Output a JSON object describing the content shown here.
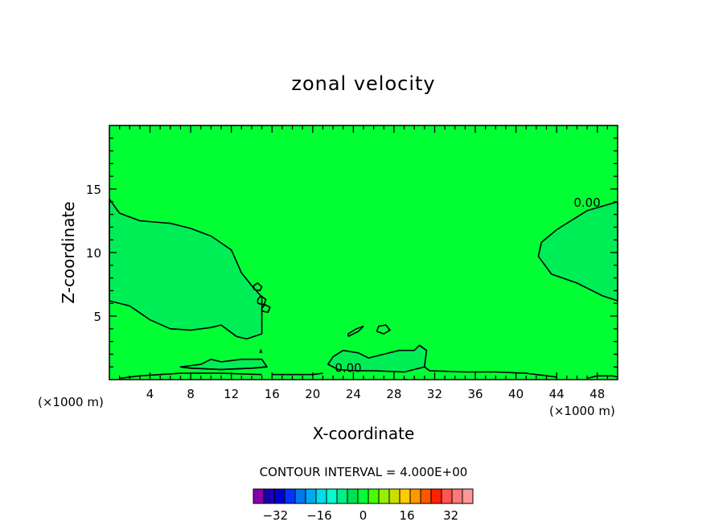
{
  "chart_data": {
    "type": "contour",
    "title": "zonal velocity",
    "xlabel": "X-coordinate",
    "ylabel": "Z-coordinate",
    "x_unit_left": "(×1000 m)",
    "x_unit_right": "(×1000 m)",
    "xlim": [
      0,
      50
    ],
    "ylim": [
      0,
      20
    ],
    "x_ticks": [
      4,
      8,
      12,
      16,
      20,
      24,
      28,
      32,
      36,
      40,
      44,
      48
    ],
    "y_ticks": [
      5,
      10,
      15
    ],
    "background_color": "#00ff33",
    "contour_levels_labeled": [
      "0.00",
      "0.00"
    ],
    "contour_interval_text": "CONTOUR INTERVAL = 4.000E+00",
    "colorbar": {
      "tick_labels": [
        "-32",
        "-16",
        "0",
        "16",
        "32"
      ],
      "tick_values": [
        -32,
        -16,
        0,
        16,
        32
      ],
      "range": [
        -40,
        40
      ],
      "colors": [
        "#8800aa",
        "#1a00aa",
        "#0000cc",
        "#0033ff",
        "#0077ee",
        "#00aaee",
        "#00ddee",
        "#00ffcc",
        "#00ee88",
        "#00e050",
        "#00ff33",
        "#44ff00",
        "#99ee00",
        "#ccdd00",
        "#ffcc00",
        "#ff9900",
        "#ff5500",
        "#ff2200",
        "#ff5555",
        "#ff7777",
        "#ff9999"
      ]
    },
    "regions": [
      {
        "name": "negative-upper-left",
        "value": -0.5,
        "color": "#00ee55",
        "points": [
          [
            0,
            14.2
          ],
          [
            1,
            13.1
          ],
          [
            3,
            12.5
          ],
          [
            6,
            12.3
          ],
          [
            8,
            11.9
          ],
          [
            10,
            11.3
          ],
          [
            12,
            10.2
          ],
          [
            13,
            8.4
          ],
          [
            14,
            7.4
          ],
          [
            15,
            6.5
          ],
          [
            15,
            3.6
          ],
          [
            13.5,
            3.2
          ],
          [
            12.5,
            3.4
          ],
          [
            11,
            4.3
          ],
          [
            10,
            4.1
          ],
          [
            8,
            3.9
          ],
          [
            6,
            4.0
          ],
          [
            4,
            4.7
          ],
          [
            2,
            5.8
          ],
          [
            0,
            6.2
          ]
        ]
      },
      {
        "name": "negative-right",
        "value": -0.5,
        "color": "#00ee55",
        "points": [
          [
            50,
            14.0
          ],
          [
            47,
            13.3
          ],
          [
            44,
            11.8
          ],
          [
            42.5,
            10.8
          ],
          [
            42.2,
            9.7
          ],
          [
            43.5,
            8.3
          ],
          [
            46,
            7.6
          ],
          [
            48.5,
            6.6
          ],
          [
            50,
            6.2
          ]
        ]
      },
      {
        "name": "negative-bottom-center",
        "value": -0.5,
        "color": "#00ee55",
        "points": [
          [
            22,
            1.8
          ],
          [
            23,
            2.3
          ],
          [
            24.5,
            2.1
          ],
          [
            25.5,
            1.7
          ],
          [
            27,
            2.0
          ],
          [
            28.5,
            2.3
          ],
          [
            30,
            2.3
          ],
          [
            30.5,
            2.7
          ],
          [
            31.2,
            2.3
          ],
          [
            31,
            1.0
          ],
          [
            29,
            0.6
          ],
          [
            26,
            0.7
          ],
          [
            24,
            0.7
          ],
          [
            22.5,
            0.8
          ],
          [
            21.5,
            1.2
          ]
        ]
      },
      {
        "name": "negative-bottom-left",
        "value": -0.5,
        "color": "#00ee55",
        "points": [
          [
            7,
            1.0
          ],
          [
            9,
            1.2
          ],
          [
            10,
            1.6
          ],
          [
            11,
            1.4
          ],
          [
            13,
            1.6
          ],
          [
            15,
            1.6
          ],
          [
            15.5,
            1.0
          ],
          [
            14,
            0.9
          ],
          [
            11,
            0.8
          ],
          [
            8,
            0.9
          ]
        ]
      }
    ],
    "contour_lines": [
      {
        "name": "contour-lower-left",
        "points": [
          [
            7,
            1.0
          ],
          [
            8,
            0.9
          ],
          [
            11,
            0.8
          ],
          [
            14,
            0.9
          ],
          [
            15.5,
            1.0
          ]
        ]
      },
      {
        "name": "contour-bottom-right",
        "points": [
          [
            31,
            1.0
          ],
          [
            31.5,
            0.7
          ],
          [
            35,
            0.6
          ],
          [
            38,
            0.6
          ],
          [
            41,
            0.5
          ],
          [
            44,
            0.2
          ]
        ]
      },
      {
        "name": "contour-bottom-right-2",
        "points": [
          [
            47,
            0.1
          ],
          [
            48,
            0.3
          ],
          [
            49.5,
            0.3
          ],
          [
            50,
            0.2
          ]
        ]
      },
      {
        "name": "contour-bottom-left",
        "points": [
          [
            1,
            0.1
          ],
          [
            3,
            0.3
          ],
          [
            7,
            0.5
          ],
          [
            11,
            0.5
          ],
          [
            15,
            0.4
          ]
        ]
      },
      {
        "name": "contour-bottom-middle",
        "points": [
          [
            16,
            0.4
          ],
          [
            18,
            0.4
          ],
          [
            20,
            0.4
          ],
          [
            21,
            0.5
          ]
        ]
      },
      {
        "name": "contour-islet-1",
        "points": [
          [
            14.2,
            7.1
          ],
          [
            14.8,
            7.0
          ],
          [
            15.0,
            7.3
          ],
          [
            14.6,
            7.6
          ],
          [
            14.2,
            7.4
          ],
          [
            14.2,
            7.1
          ]
        ]
      },
      {
        "name": "contour-islet-2",
        "points": [
          [
            14.6,
            6.0
          ],
          [
            15.2,
            5.9
          ],
          [
            15.4,
            6.3
          ],
          [
            14.9,
            6.6
          ],
          [
            14.6,
            6.3
          ],
          [
            14.6,
            6.0
          ]
        ]
      },
      {
        "name": "contour-islet-3",
        "points": [
          [
            15.0,
            5.4
          ],
          [
            15.6,
            5.3
          ],
          [
            15.8,
            5.7
          ],
          [
            15.3,
            5.9
          ],
          [
            15.0,
            5.6
          ],
          [
            15.0,
            5.4
          ]
        ]
      },
      {
        "name": "contour-islet-4",
        "points": [
          [
            23.5,
            3.4
          ],
          [
            24.5,
            3.8
          ],
          [
            25,
            4.2
          ],
          [
            24.3,
            4.0
          ],
          [
            23.5,
            3.6
          ],
          [
            23.5,
            3.4
          ]
        ]
      },
      {
        "name": "contour-islet-5",
        "points": [
          [
            26.3,
            3.8
          ],
          [
            27,
            3.6
          ],
          [
            27.6,
            3.9
          ],
          [
            27.2,
            4.3
          ],
          [
            26.5,
            4.2
          ],
          [
            26.3,
            3.8
          ]
        ]
      },
      {
        "name": "contour-islet-6",
        "points": [
          [
            14.8,
            2.1
          ],
          [
            14.9,
            2.3
          ],
          [
            15,
            2.1
          ]
        ]
      }
    ],
    "contour_labels": [
      {
        "text": "0.00",
        "x": 47,
        "y": 13.6
      },
      {
        "text": "0.00",
        "x": 23.5,
        "y": 0.6
      }
    ]
  }
}
